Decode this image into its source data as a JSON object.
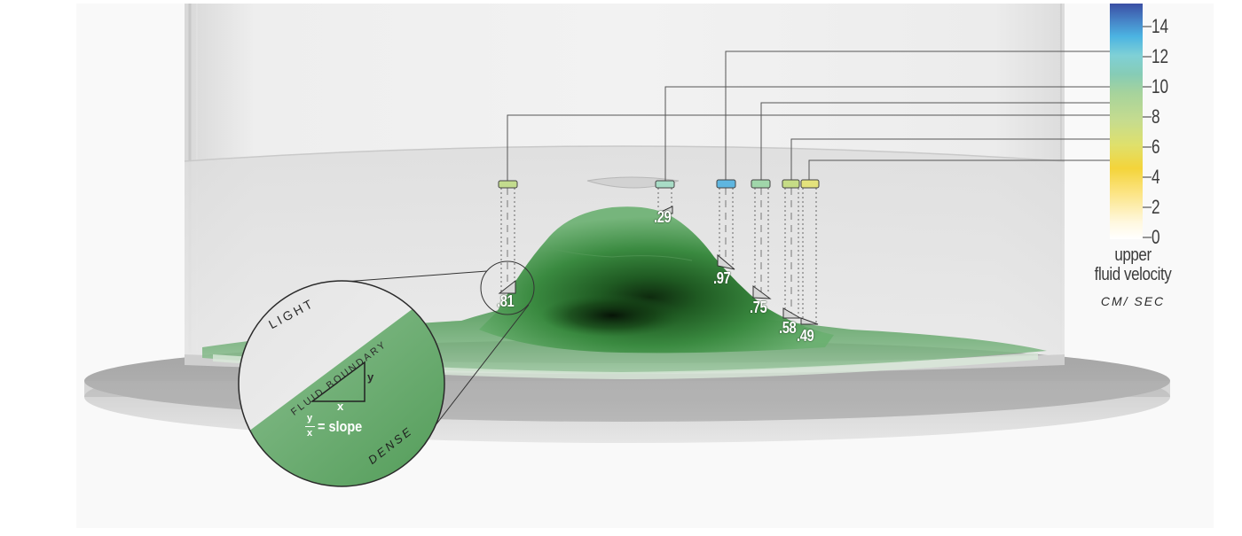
{
  "legend": {
    "title": "upper\nfluid velocity",
    "unit": "CM/ SEC",
    "ticks": [
      "0",
      "2",
      "4",
      "6",
      "8",
      "10",
      "12",
      "14"
    ],
    "colors": [
      "#ffffff",
      "#fde58a",
      "#f6d03a",
      "#e0e26a",
      "#c9de8c",
      "#a8d49a",
      "#86cdb4",
      "#7dd0d4",
      "#4fb8e0",
      "#4a86c8",
      "#3c5ca8",
      "#5a4aa6"
    ]
  },
  "slope_labels": [
    ".29",
    ".81",
    ".97",
    ".75",
    ".58",
    ".49"
  ],
  "inset": {
    "light": "LIGHT",
    "dense": "DENSE",
    "boundary": "FLUID BOUNDARY",
    "x": "x",
    "y": "y",
    "formula_num": "y",
    "formula_den": "x",
    "formula_eq": "= slope"
  },
  "colors": {
    "fluid_green": "#2f8a3a",
    "fluid_dark": "#123a12",
    "tank_glass": "#e4e4e4",
    "base": "#a9a9a9"
  }
}
